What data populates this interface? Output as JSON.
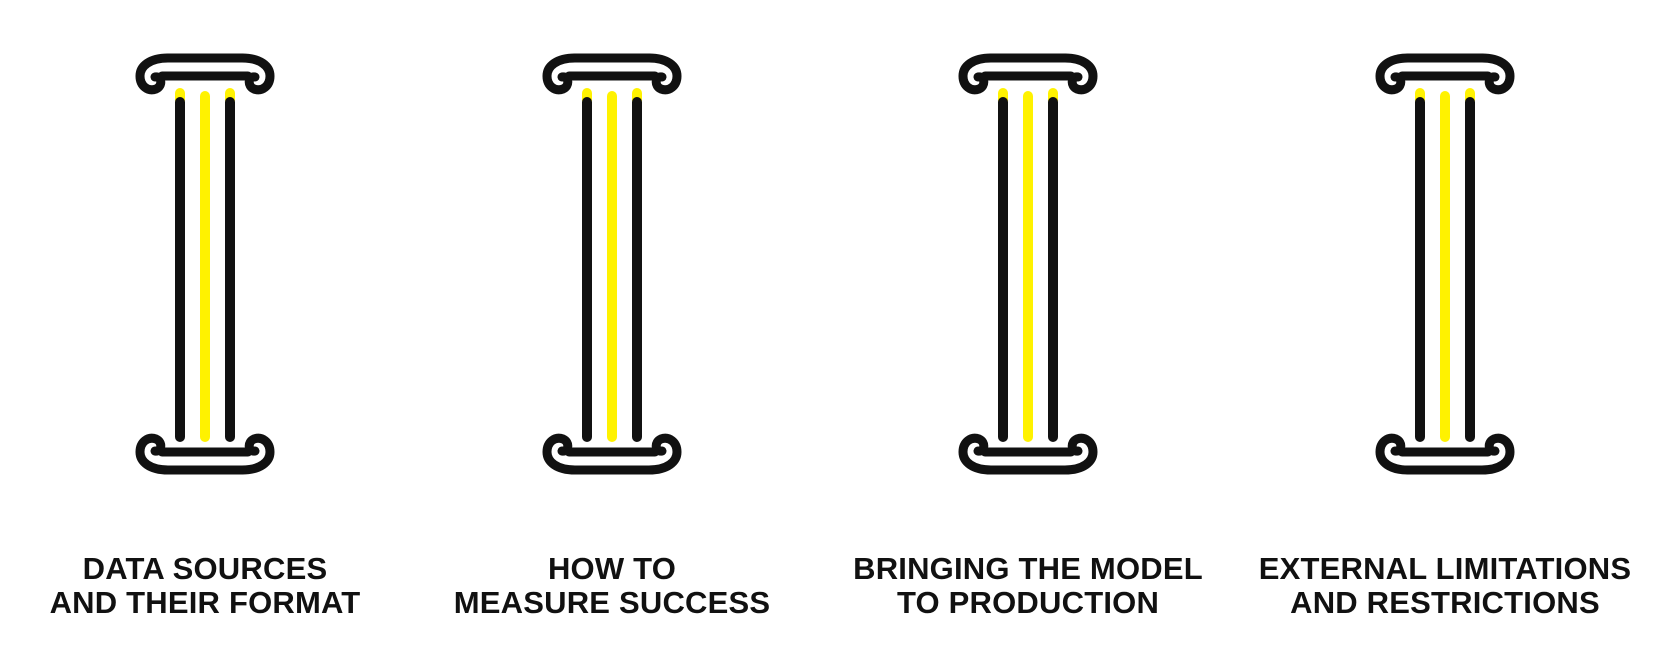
{
  "colors": {
    "outline": "#111111",
    "accent": "#FFF200",
    "background": "#FFFFFF"
  },
  "pillars": [
    {
      "icon": "ionic-column-icon",
      "caption": [
        "DATA SOURCES",
        "AND THEIR FORMAT"
      ]
    },
    {
      "icon": "ionic-column-icon",
      "caption": [
        "HOW TO",
        "MEASURE SUCCESS"
      ]
    },
    {
      "icon": "ionic-column-icon",
      "caption": [
        "BRINGING THE MODEL",
        "TO PRODUCTION"
      ]
    },
    {
      "icon": "ionic-column-icon",
      "caption": [
        "EXTERNAL LIMITATIONS",
        "AND RESTRICTIONS"
      ]
    }
  ]
}
